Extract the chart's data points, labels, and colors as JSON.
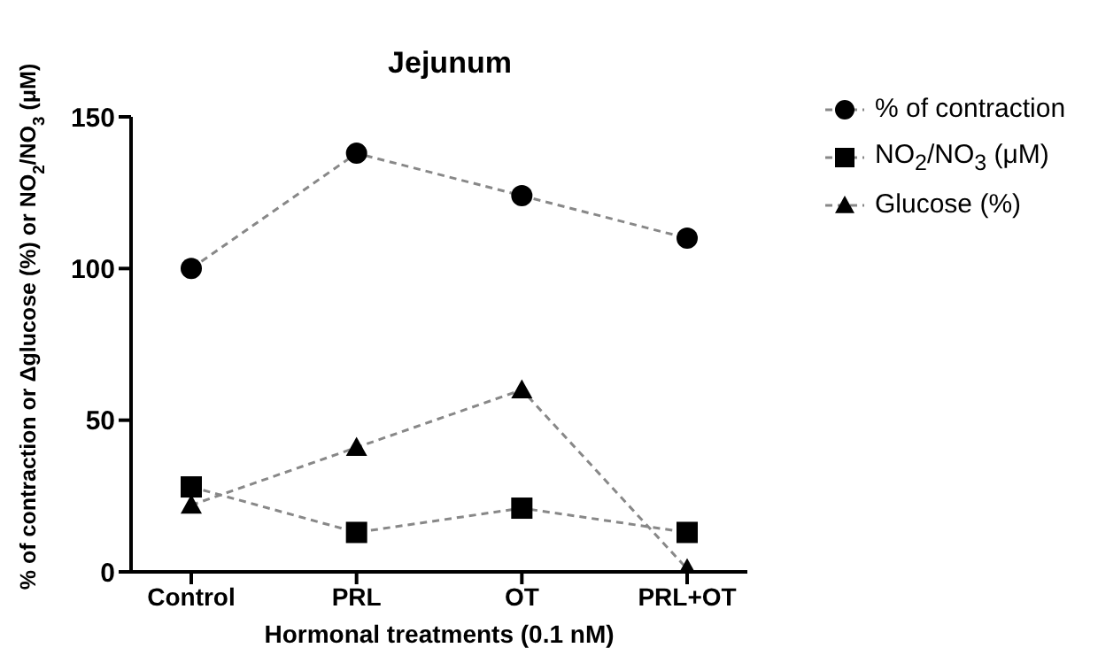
{
  "chart_data": {
    "type": "line",
    "title": "Jejunum",
    "xlabel": "Hormonal treatments (0.1 nM)",
    "ylabel": "% of contraction or Δglucose (%) or NO$_{2}$/NO$_{3}$ (μM)",
    "categories": [
      "Control",
      "PRL",
      "OT",
      "PRL+OT"
    ],
    "ylim": [
      0,
      150
    ],
    "yticks": [
      0,
      50,
      100,
      150
    ],
    "grid": false,
    "legend": "top right",
    "line_style": "dashed",
    "series": [
      {
        "name": "% of contraction",
        "color": "#000000",
        "marker": "circle",
        "values": [
          100,
          138,
          124,
          110
        ]
      },
      {
        "name": "NO$_{2}$/NO$_{3}$ (μM)",
        "color": "#000000",
        "marker": "square",
        "values": [
          28,
          13,
          21,
          13
        ]
      },
      {
        "name": "Glucose (%)",
        "color": "#000000",
        "marker": "triangle",
        "values": [
          22,
          41,
          60,
          1
        ]
      }
    ]
  }
}
